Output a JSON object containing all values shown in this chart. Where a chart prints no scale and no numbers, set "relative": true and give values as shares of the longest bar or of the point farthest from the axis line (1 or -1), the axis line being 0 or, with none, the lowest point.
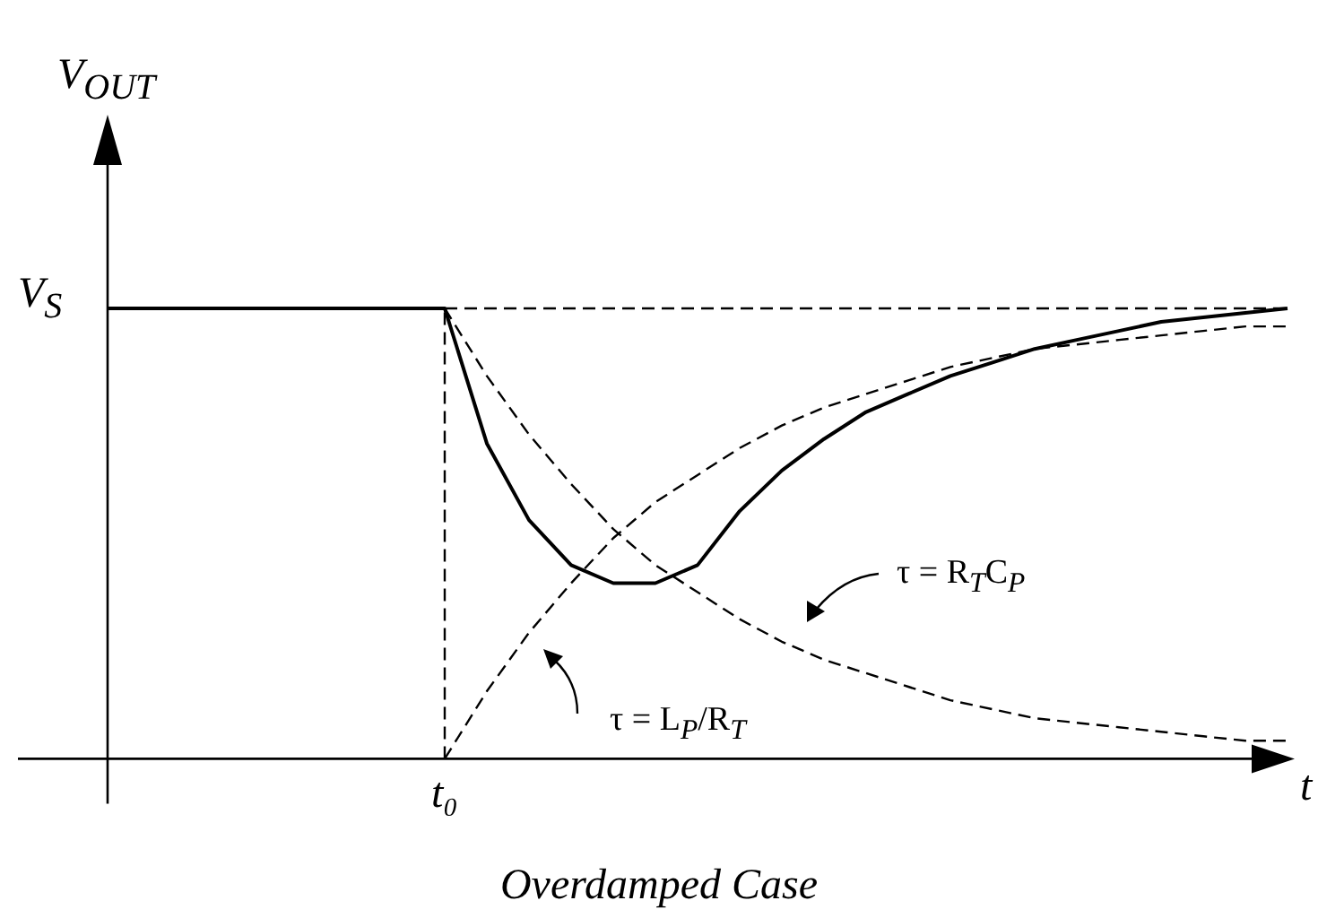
{
  "chart_data": {
    "type": "line",
    "relative": true,
    "title": "Overdamped Case",
    "xlabel": "t",
    "ylabel": "V$_{OUT}$",
    "categories": [
      null,
      null,
      null,
      null,
      null,
      null,
      null,
      null,
      null,
      null,
      null,
      null,
      null,
      null,
      null,
      null,
      null,
      null,
      null,
      null,
      null,
      null,
      null,
      null,
      null,
      null,
      null,
      null,
      null
    ],
    "series": [
      {
        "color": "#000000",
        "line_style": "solid",
        "values": [
          1,
          1,
          1,
          1,
          1,
          1,
          1,
          1,
          1,
          0.7,
          0.53,
          0.43,
          0.39,
          0.39,
          0.43,
          0.55,
          0.64,
          0.71,
          0.77,
          0.81,
          0.85,
          0.88,
          0.91,
          0.93,
          0.95,
          0.97,
          0.98,
          0.99,
          1
        ]
      },
      {
        "color": "#000000",
        "line_style": "dashed",
        "values": [
          null,
          null,
          null,
          null,
          null,
          null,
          null,
          null,
          1,
          0.85,
          0.72,
          0.61,
          0.51,
          0.43,
          0.37,
          0.31,
          0.26,
          0.22,
          0.19,
          0.16,
          0.13,
          0.11,
          0.09,
          0.08,
          0.07,
          0.06,
          0.05,
          0.04,
          0.04
        ]
      },
      {
        "color": "#000000",
        "line_style": "dashed",
        "values": [
          null,
          null,
          null,
          null,
          null,
          null,
          null,
          null,
          0,
          0.15,
          0.28,
          0.39,
          0.49,
          0.57,
          0.63,
          0.69,
          0.74,
          0.78,
          0.81,
          0.84,
          0.87,
          0.89,
          0.91,
          0.92,
          0.93,
          0.94,
          0.95,
          0.96,
          0.96
        ]
      }
    ],
    "ref_lines": [
      {
        "axis": "y",
        "value": 1,
        "label": "V$_{S}$",
        "line_style": "dashed"
      }
    ],
    "annotations": [
      "τ = R$_{T}$C$_{P}$",
      "τ = L$_{P}$/R$_{T}$",
      "t₀"
    ],
    "legend": false,
    "grid": false
  }
}
